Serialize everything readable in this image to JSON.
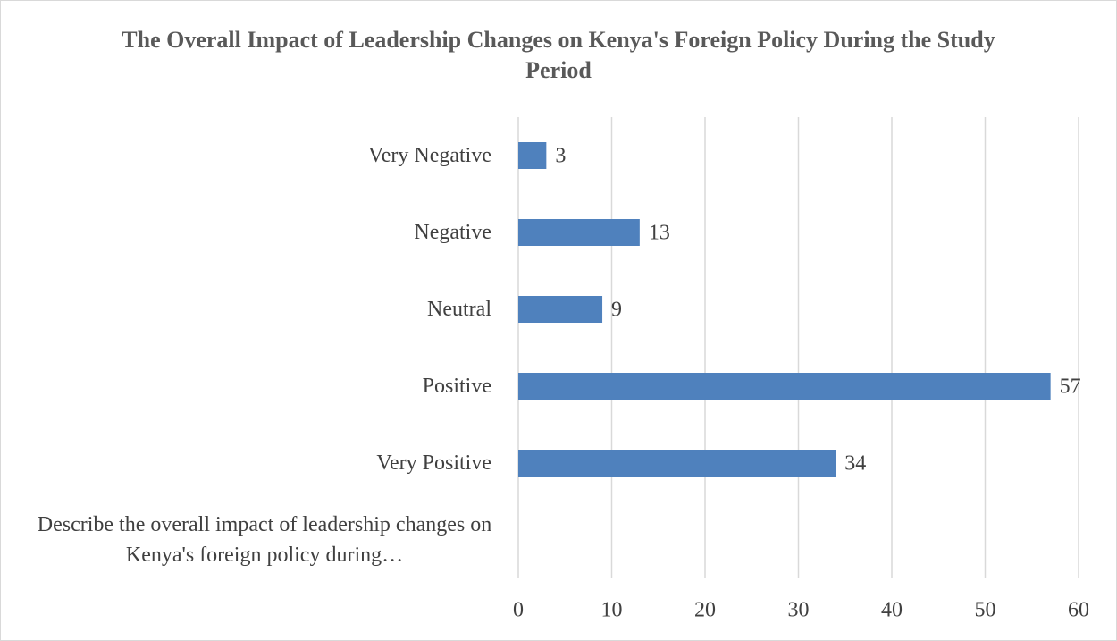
{
  "chart_data": {
    "type": "barh",
    "title": "The Overall Impact of Leadership Changes on Kenya's Foreign Policy During the Study Period",
    "categories": [
      "Very Negative",
      "Negative",
      "Neutral",
      "Positive",
      "Very Positive",
      "Describe the overall impact of leadership changes on Kenya's foreign policy during…"
    ],
    "values": [
      3,
      13,
      9,
      57,
      34,
      null
    ],
    "color": "#4f81bd",
    "xlim": [
      0,
      60
    ],
    "xticks": [
      0,
      10,
      20,
      30,
      40,
      50,
      60
    ],
    "grid": true
  }
}
